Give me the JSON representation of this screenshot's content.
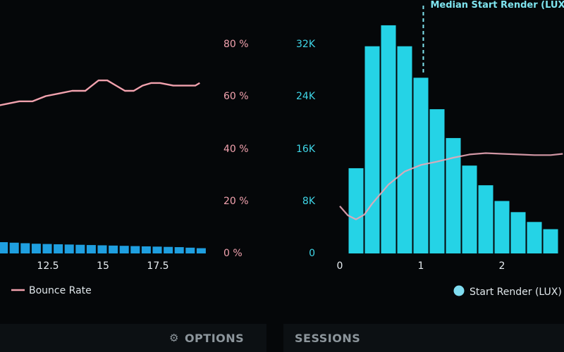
{
  "colors": {
    "background": "#050709",
    "bounce": "#f2a2ae",
    "bar_left": "#1f9fe0",
    "bar_right": "#25d3e6",
    "axis_left_text": "#f2a2ae",
    "axis_right_text": "#3fd6e8",
    "axis_x_text": "#e8eef2"
  },
  "tabs": {
    "options_label": "OPTIONS",
    "options_icon": "gear-icon",
    "sessions_label": "SESSIONS"
  },
  "chart_data": [
    {
      "type": "line",
      "xlabel": "",
      "ylabel": "",
      "x_ticks": [
        "12.5",
        "15",
        "17.5"
      ],
      "y_ticks": [
        "80 %",
        "60 %",
        "40 %",
        "20 %",
        "0 %"
      ],
      "ylim": [
        0,
        80
      ],
      "legend": {
        "position": "bottom-left",
        "label": "Bounce Rate"
      },
      "series": [
        {
          "name": "Bounce Rate",
          "kind": "line",
          "x": [
            10.0,
            10.6,
            11.2,
            11.8,
            12.4,
            13.0,
            13.6,
            14.2,
            14.8,
            15.2,
            15.6,
            16.0,
            16.4,
            16.8,
            17.2,
            17.6,
            18.2,
            18.8,
            19.2,
            19.4
          ],
          "values": [
            56,
            57,
            58,
            58,
            60,
            61,
            62,
            62,
            66,
            66,
            64,
            62,
            62,
            64,
            65,
            65,
            64,
            64,
            64,
            65
          ]
        },
        {
          "name": "",
          "kind": "bar",
          "x": [
            10.0,
            10.5,
            11.0,
            11.5,
            12.0,
            12.5,
            13.0,
            13.5,
            14.0,
            14.5,
            15.0,
            15.5,
            16.0,
            16.5,
            17.0,
            17.5,
            18.0,
            18.5,
            19.0,
            19.5
          ],
          "values": [
            4.5,
            4.3,
            4.1,
            3.9,
            3.7,
            3.6,
            3.5,
            3.4,
            3.3,
            3.2,
            3.1,
            3.0,
            2.9,
            2.8,
            2.7,
            2.6,
            2.5,
            2.4,
            2.2,
            2.0
          ]
        }
      ]
    },
    {
      "type": "bar",
      "xlabel": "",
      "ylabel": "",
      "x_ticks": [
        "0",
        "1",
        "2"
      ],
      "y_ticks": [
        "32K",
        "24K",
        "16K",
        "8K",
        "0"
      ],
      "ylim": [
        0,
        32000
      ],
      "xlim": [
        0,
        2.75
      ],
      "annotation": {
        "label": "Median Start Render (LUX)",
        "x": 1.03
      },
      "legend": {
        "position": "bottom-right",
        "label": "Start Render (LUX)"
      },
      "series": [
        {
          "name": "Start Render (LUX)",
          "kind": "bar",
          "x": [
            0.2,
            0.4,
            0.6,
            0.8,
            1.0,
            1.2,
            1.4,
            1.6,
            1.8,
            2.0,
            2.2,
            2.4,
            2.6
          ],
          "values": [
            13000,
            31600,
            34800,
            31600,
            26800,
            22000,
            17600,
            13400,
            10400,
            8000,
            6300,
            4800,
            3700
          ]
        },
        {
          "name": "",
          "kind": "line",
          "x": [
            0.0,
            0.1,
            0.2,
            0.3,
            0.4,
            0.6,
            0.8,
            1.0,
            1.2,
            1.4,
            1.6,
            1.8,
            2.0,
            2.2,
            2.4,
            2.6,
            2.75
          ],
          "values": [
            7200,
            5800,
            5200,
            5900,
            7600,
            10500,
            12500,
            13500,
            14000,
            14600,
            15100,
            15300,
            15200,
            15100,
            15000,
            15000,
            15200
          ]
        }
      ]
    }
  ]
}
